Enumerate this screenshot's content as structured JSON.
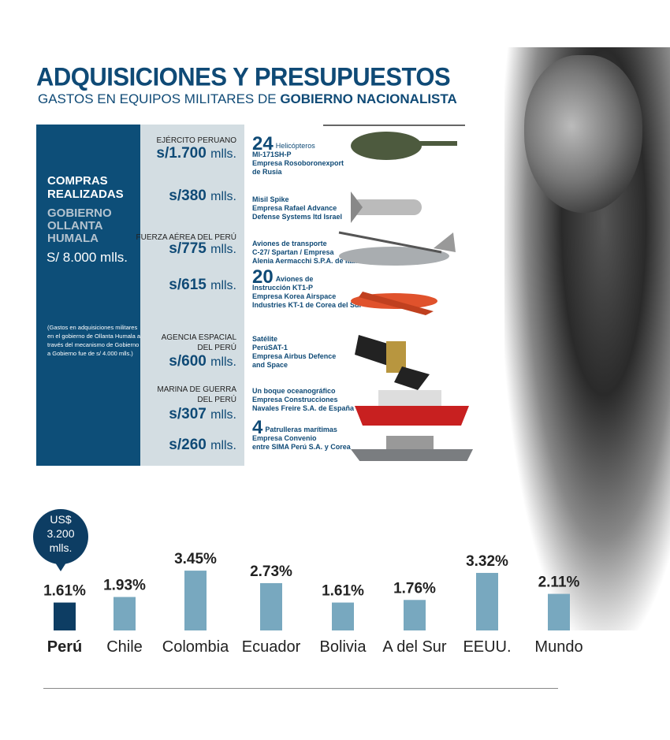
{
  "header": {
    "title": "ADQUISICIONES Y PRESUPUESTOS",
    "subtitle_plain": "GASTOS EN EQUIPOS MILITARES DE ",
    "subtitle_bold": "GOBIERNO NACIONALISTA"
  },
  "left_panel": {
    "heading_1": "COMPRAS",
    "heading_2": "REALIZADAS",
    "gov_1": "GOBIERNO",
    "gov_2": "OLLANTA",
    "gov_3": "HUMALA",
    "total": "S/ 8.000 mlls.",
    "note": "(Gastos en adquisiciones militares en el gobierno de Ollanta Humala a través del mecanismo de Gobierno a Gobierno fue de s/ 4.000 mlls.)"
  },
  "purchases": [
    {
      "dept": "EJÉRCITO PERUANO",
      "amount": "s/1.700",
      "unit": "mlls.",
      "count": "24",
      "desc_1": "Helicópteros",
      "desc_2": "MI-171SH-P",
      "desc_3": "Empresa Rosoboronexport",
      "desc_4": "de Rusia"
    },
    {
      "amount": "s/380",
      "unit": "mlls.",
      "desc_1": "Misil Spike",
      "desc_2": "Empresa Rafael Advance",
      "desc_3": "Defense Systems ltd Israel"
    },
    {
      "dept": "FUERZA AÉREA DEL PERÚ",
      "amount": "s/775",
      "unit": "mlls.",
      "desc_1": "Aviones de transporte",
      "desc_2": "C-27/ Spartan / Empresa",
      "desc_3": "Alenia Aermacchi S.P.A. de Italia"
    },
    {
      "amount": "s/615",
      "unit": "mlls.",
      "count": "20",
      "desc_1": "Aviones de",
      "desc_2": "Instrucción KT1-P",
      "desc_3": "Empresa Korea Airspace",
      "desc_4": "Industries KT-1 de Corea del Sur"
    },
    {
      "dept_1": "AGENCIA ESPACIAL",
      "dept_2": "DEL PERÚ",
      "amount": "s/600",
      "unit": "mlls.",
      "desc_1": "Satélite",
      "desc_2": "PerúSAT-1",
      "desc_3": "Empresa Airbus Defence",
      "desc_4": "and Space"
    },
    {
      "dept_1": "MARINA DE GUERRA",
      "dept_2": "DEL PERÚ",
      "amount": "s/307",
      "unit": "mlls.",
      "desc_1": "Un boque oceanográfico",
      "desc_2": "Empresa Construcciones",
      "desc_3": "Navales Freire S.A. de España"
    },
    {
      "amount": "s/260",
      "unit": "mlls.",
      "count": "4",
      "desc_1": "Patrulleras marítimas",
      "desc_2": "Empresa Convenio",
      "desc_3": "entre SIMA Perú S.A. y Corea"
    }
  ],
  "colors": {
    "brand": "#0f4a76",
    "highlight_bar": "#0d3d63",
    "bar": "#78a8bf",
    "panel_dark": "#0d4e78",
    "panel_light": "#d3dde2"
  },
  "chart_data": {
    "type": "bar",
    "categories": [
      "Perú",
      "Chile",
      "Colombia",
      "Ecuador",
      "Bolivia",
      "A del Sur",
      "EEUU.",
      "Mundo"
    ],
    "values": [
      1.61,
      1.93,
      3.45,
      2.73,
      1.61,
      1.76,
      3.32,
      2.11
    ],
    "labels": [
      "1.61%",
      "1.93%",
      "3.45%",
      "2.73%",
      "1.61%",
      "1.76%",
      "3.32%",
      "2.11%"
    ],
    "highlight": "Perú",
    "callout": {
      "line_1": "US$",
      "line_2": "3.200",
      "line_3": "mlls."
    },
    "grid": false
  }
}
